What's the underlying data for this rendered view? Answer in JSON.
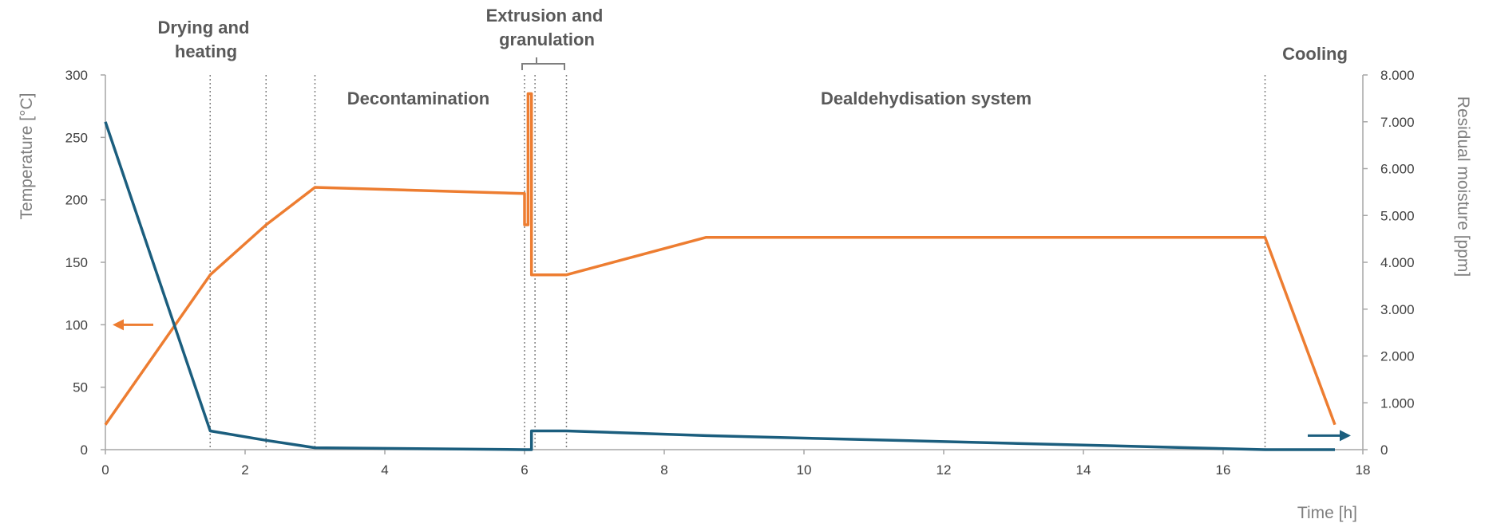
{
  "chart_data": {
    "type": "line",
    "x_axis": {
      "label": "Time [h]",
      "range": [
        0,
        18
      ],
      "ticks": [
        "0",
        "2",
        "4",
        "6",
        "8",
        "10",
        "12",
        "14",
        "16",
        "18"
      ]
    },
    "y_axis_left": {
      "label": "Temperature [°C]",
      "range": [
        0,
        300
      ],
      "ticks": [
        "0",
        "50",
        "100",
        "150",
        "200",
        "250",
        "300"
      ]
    },
    "y_axis_right": {
      "label": "Residual moisture [ppm]",
      "range": [
        0,
        8000
      ],
      "ticks": [
        "0",
        "1.000",
        "2.000",
        "3.000",
        "4.000",
        "5.000",
        "6.000",
        "7.000",
        "8.000"
      ]
    },
    "phases": [
      {
        "label_lines": [
          "Drying and",
          "heating"
        ]
      },
      {
        "label_lines": [
          "Decontamination"
        ]
      },
      {
        "label_lines": [
          "Extrusion and",
          "granulation"
        ]
      },
      {
        "label_lines": [
          "Dealdehydisation system"
        ]
      },
      {
        "label_lines": [
          "Cooling"
        ]
      }
    ],
    "phase_boundaries_h": [
      1.5,
      2.3,
      3.0,
      6.0,
      6.15,
      6.6,
      16.6
    ],
    "series": [
      {
        "axis": "left",
        "color": "#ed7d31",
        "x": [
          0,
          1.5,
          2.3,
          3.0,
          6.0,
          6.0,
          6.05,
          6.05,
          6.1,
          6.1,
          6.6,
          8.6,
          16.6,
          17.6
        ],
        "y": [
          20,
          140,
          180,
          210,
          205,
          180,
          180,
          285,
          285,
          140,
          140,
          170,
          170,
          20
        ]
      },
      {
        "axis": "right",
        "color": "#1b5e7e",
        "x": [
          0,
          1.5,
          2.3,
          3.0,
          6.0,
          6.1,
          6.1,
          6.6,
          8.6,
          16.6,
          17.6
        ],
        "y": [
          7000,
          400,
          200,
          40,
          0,
          0,
          400,
          400,
          300,
          0,
          0
        ]
      }
    ],
    "grid": false,
    "legend": "none"
  }
}
